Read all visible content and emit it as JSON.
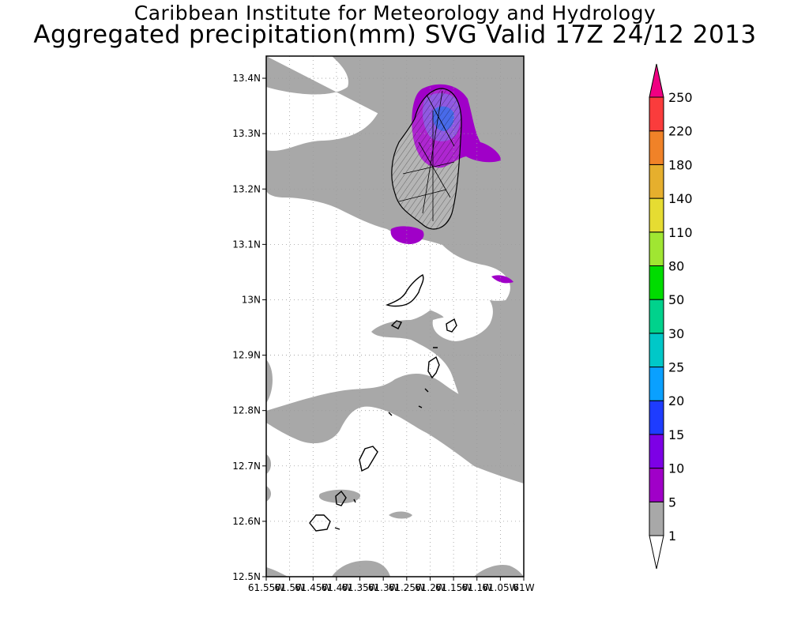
{
  "title_line1": "Caribbean Institute for Meteorology and Hydrology",
  "title_line2": "Aggregated precipitation(mm) SVG Valid 17Z 24/12 2013",
  "map": {
    "lon_range": [
      -61.55,
      -61.0
    ],
    "lat_range": [
      12.5,
      13.44
    ],
    "gridlines": true,
    "y_ticks": [
      {
        "value": 13.4,
        "label": "13.4N"
      },
      {
        "value": 13.3,
        "label": "13.3N"
      },
      {
        "value": 13.2,
        "label": "13.2N"
      },
      {
        "value": 13.1,
        "label": "13.1N"
      },
      {
        "value": 13.0,
        "label": "13N"
      },
      {
        "value": 12.9,
        "label": "12.9N"
      },
      {
        "value": 12.8,
        "label": "12.8N"
      },
      {
        "value": 12.7,
        "label": "12.7N"
      },
      {
        "value": 12.6,
        "label": "12.6N"
      },
      {
        "value": 12.5,
        "label": "12.5N"
      }
    ],
    "x_ticks": [
      {
        "value": -61.55,
        "label": "61.55W"
      },
      {
        "value": -61.5,
        "label": "61.5W"
      },
      {
        "value": -61.45,
        "label": "61.45W"
      },
      {
        "value": -61.4,
        "label": "61.4W"
      },
      {
        "value": -61.35,
        "label": "61.35W"
      },
      {
        "value": -61.3,
        "label": "61.3W"
      },
      {
        "value": -61.25,
        "label": "61.25W"
      },
      {
        "value": -61.2,
        "label": "61.2W"
      },
      {
        "value": -61.15,
        "label": "61.15W"
      },
      {
        "value": -61.1,
        "label": "61.1W"
      },
      {
        "value": -61.05,
        "label": "61.05W"
      },
      {
        "value": -61.0,
        "label": "61W"
      }
    ],
    "fill_colors": {
      "light": "#a8a8a8",
      "moderate": "#a000c8",
      "heavy": "#7d3cdc",
      "peak": "#2850e6",
      "land_outline": "#000000"
    }
  },
  "colorbar": {
    "labels": [
      "1",
      "5",
      "10",
      "15",
      "20",
      "25",
      "30",
      "50",
      "80",
      "110",
      "140",
      "180",
      "220",
      "250"
    ],
    "colors": [
      "#a8a8a8",
      "#a000c8",
      "#7d00e6",
      "#1e3cff",
      "#0aa0ff",
      "#00c8c8",
      "#00d28c",
      "#00dc00",
      "#a0e632",
      "#e6dc32",
      "#e6af2d",
      "#f08228",
      "#fa3c3c",
      "#f00082"
    ]
  }
}
